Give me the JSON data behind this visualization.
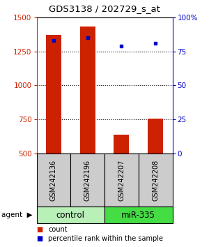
{
  "title": "GDS3138 / 202729_s_at",
  "samples": [
    "GSM242136",
    "GSM242196",
    "GSM242207",
    "GSM242208"
  ],
  "groups": [
    "control",
    "control",
    "miR-335",
    "miR-335"
  ],
  "counts": [
    1370,
    1430,
    640,
    755
  ],
  "percentile_ranks": [
    83,
    85,
    79,
    81
  ],
  "ylim_left": [
    500,
    1500
  ],
  "yticks_left": [
    500,
    750,
    1000,
    1250,
    1500
  ],
  "ylim_right": [
    0,
    100
  ],
  "yticks_right": [
    0,
    25,
    50,
    75,
    100
  ],
  "bar_color": "#CC2200",
  "dot_color": "#0000CC",
  "group_color_map": {
    "control": "#b8f0b8",
    "miR-335": "#44dd44"
  },
  "sample_box_color": "#cccccc",
  "bar_width": 0.45,
  "grid_yticks": [
    750,
    1000,
    1250
  ]
}
